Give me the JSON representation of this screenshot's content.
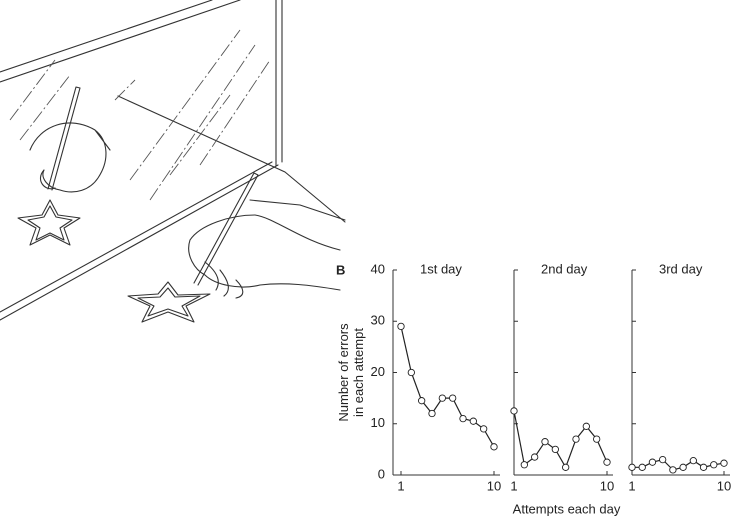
{
  "panel_label": "B",
  "chart_data": [
    {
      "type": "line",
      "title": "1st day",
      "ylabel": [
        "Number of errors",
        "in each attempt"
      ],
      "x": [
        1,
        2,
        3,
        4,
        5,
        6,
        7,
        8,
        9,
        10
      ],
      "values": [
        29,
        20,
        14.5,
        12,
        15,
        15,
        11,
        10.5,
        9,
        5.5
      ],
      "xlim": [
        1,
        10
      ],
      "xticks": [
        1,
        10
      ],
      "ylim": [
        0,
        40
      ],
      "yticks": [
        0,
        10,
        20,
        30,
        40
      ],
      "color": "#222"
    },
    {
      "type": "line",
      "title": "2nd day",
      "xlabel": "Attempts each day",
      "x": [
        1,
        2,
        3,
        4,
        5,
        6,
        7,
        8,
        9,
        10
      ],
      "values": [
        12.5,
        2,
        3.5,
        6.5,
        5,
        1.5,
        7,
        9.5,
        7,
        2.5
      ],
      "xlim": [
        1,
        10
      ],
      "xticks": [
        1,
        10
      ],
      "ylim": [
        0,
        40
      ],
      "color": "#222"
    },
    {
      "type": "line",
      "title": "3rd day",
      "x": [
        1,
        2,
        3,
        4,
        5,
        6,
        7,
        8,
        9,
        10
      ],
      "values": [
        1.5,
        1.5,
        2.5,
        3,
        1,
        1.5,
        2.8,
        1.5,
        2,
        2.3
      ],
      "xlim": [
        1,
        10
      ],
      "xticks": [
        1,
        10
      ],
      "ylim": [
        0,
        40
      ],
      "color": "#222"
    }
  ]
}
